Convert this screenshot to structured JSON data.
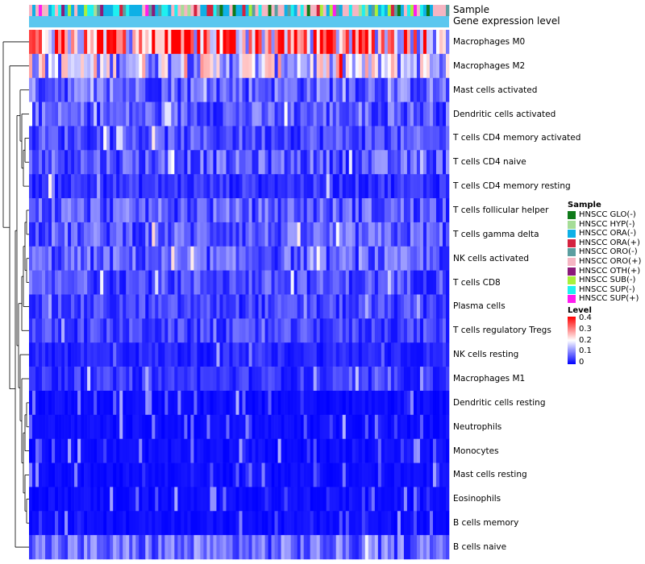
{
  "chart_data": {
    "type": "heatmap",
    "title": "",
    "annotation_tracks": [
      "Sample",
      "Gene expression level"
    ],
    "rows": [
      "Macrophages M0",
      "Macrophages M2",
      "Mast cells activated",
      "Dendritic cells activated",
      "T cells CD4 memory activated",
      "T cells CD4 naive",
      "T cells CD4 memory resting",
      "T cells follicular helper",
      "T cells gamma delta",
      "NK cells activated",
      "T cells CD8",
      "Plasma cells",
      "T cells regulatory  Tregs",
      "NK cells resting",
      "Macrophages M1",
      "Dendritic cells resting",
      "Neutrophils",
      "Monocytes",
      "Mast cells resting",
      "Eosinophils",
      "B cells memory",
      "B cells naive"
    ],
    "row_mean_levels": [
      0.28,
      0.16,
      0.08,
      0.07,
      0.06,
      0.07,
      0.04,
      0.07,
      0.07,
      0.07,
      0.06,
      0.05,
      0.05,
      0.03,
      0.04,
      0.015,
      0.015,
      0.02,
      0.015,
      0.01,
      0.01,
      0.08
    ],
    "n_samples": 130,
    "sample_legend": {
      "title": "Sample",
      "items": [
        {
          "label": "HNSCC GLO(-)",
          "color": "#0f7a1a"
        },
        {
          "label": "HNSCC HYP(-)",
          "color": "#a6dd97"
        },
        {
          "label": "HNSCC ORA(-)",
          "color": "#0fb0e6"
        },
        {
          "label": "HNSCC ORA(+)",
          "color": "#d4223f"
        },
        {
          "label": "HNSCC ORO(-)",
          "color": "#5b9ea0"
        },
        {
          "label": "HNSCC ORO(+)",
          "color": "#f5b5c3"
        },
        {
          "label": "HNSCC OTH(+)",
          "color": "#8b1a7a"
        },
        {
          "label": "HNSCC SUB(-)",
          "color": "#a8f03c"
        },
        {
          "label": "HNSCC SUP(-)",
          "color": "#1ff0f0"
        },
        {
          "label": "HNSCC SUP(+)",
          "color": "#ff1cf0"
        }
      ]
    },
    "level_legend": {
      "title": "Level",
      "ticks": [
        "0.4",
        "0.3",
        "0.2",
        "0.1",
        "0"
      ],
      "range": [
        0,
        0.4
      ],
      "colors": {
        "low": "#0000ff",
        "mid": "#ffffff",
        "high": "#ff0000"
      }
    },
    "gene_expression_color": "#5bc7ef"
  }
}
